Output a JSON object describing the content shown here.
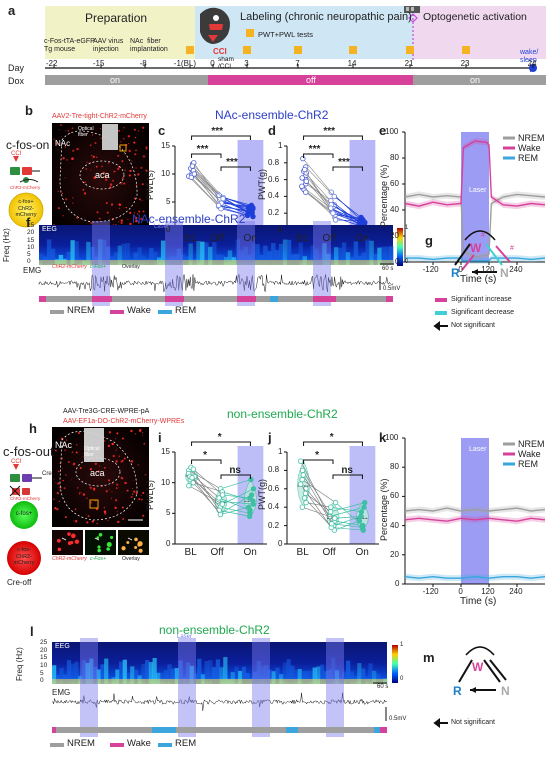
{
  "panels": {
    "a": {
      "label": "a",
      "phases": [
        "Preparation",
        "Labeling  (chronic neuropathic pain)",
        "Optogenetic activation"
      ],
      "prep_events": [
        "c-Fos-tTA-eGFP\nTg mouse",
        "AAV virus\ninjection",
        "NAc  fiber\nimplantation"
      ],
      "cci": "CCI",
      "sham": "sham\n/CCI",
      "pwt_legend": "PWT+PWL tests",
      "day_label": "Day",
      "days": [
        "-22",
        "-15",
        "-8",
        "-1(BL)",
        "0",
        "3",
        "7",
        "14",
        "21",
        "23",
        "24"
      ],
      "wake_sleep": "wake/\nsleep",
      "dox_label": "Dox",
      "dox": [
        "on",
        "off",
        "on"
      ]
    },
    "b": {
      "label": "b",
      "virus": "AAV2-Tre-tight-ChR2-mCherry",
      "condition": "c-fos-on",
      "cci": "CCI",
      "region1": "NAc",
      "region2": "aca",
      "fiber": "Optical\nfiber",
      "inset_labels": [
        "ChR2-mCherry",
        "c-Fos+",
        "Overlay"
      ],
      "circle_text": "c-fos+\nChR2-\nmCherry",
      "small_text": "ChR2-mCherry"
    },
    "c": {
      "label": "c",
      "ylabel": "PWL(s)",
      "categories": [
        "BL",
        "Off",
        "On"
      ],
      "sig": [
        "***",
        "***",
        "***"
      ],
      "laser": "Laser"
    },
    "d": {
      "label": "d",
      "ylabel": "PWT(g)",
      "categories": [
        "BL",
        "Off",
        "On"
      ],
      "sig": [
        "***",
        "***",
        "***"
      ]
    },
    "e": {
      "label": "e",
      "ylabel": "Percentage (%)",
      "xlabel": "Time (s)",
      "ticks_x": [
        "-120",
        "0",
        "120",
        "240"
      ],
      "ticks_y": [
        "0",
        "20",
        "40",
        "60",
        "80",
        "100"
      ],
      "legend": [
        "NREM",
        "Wake",
        "REM"
      ],
      "laser": "Laser"
    },
    "f": {
      "label": "f",
      "title": "NAc-ensemble-ChR2",
      "laser": "Laser",
      "eeg": "EEG",
      "emg": "EMG",
      "freq": "Freq (Hz)",
      "ticks_y": [
        "25",
        "20",
        "15",
        "10",
        "5",
        "0"
      ],
      "cbar": [
        "1",
        "0"
      ],
      "scale_t": "60 s",
      "scale_v": "0.5mV",
      "legend": [
        "NREM",
        "Wake",
        "REM"
      ]
    },
    "g": {
      "label": "g",
      "nodes": [
        "W",
        "R",
        "N"
      ],
      "legend": [
        "Significant increase",
        "Significant decrease",
        "Not significant"
      ],
      "marks": [
        "#",
        "#"
      ]
    },
    "h": {
      "label": "h",
      "virus1": "AAV-Tre3G-CRE-WPRE-pA",
      "virus2": "AAV-EF1a-DO-ChR2-mCherry-WPREs",
      "condition": "c-fos-out",
      "cci": "CCI",
      "cre": "Cre",
      "region1": "NAc",
      "region2": "aca",
      "fiber": "Optical\nfiber",
      "inset_labels": [
        "ChR2-mCherry",
        "c-Fos+",
        "Overlay"
      ],
      "circle1": "c-fos+",
      "circle2": "c-fos-\nChR2-\nmCherry",
      "creoff": "Cre-off",
      "small_text": "ChR2-mCherry"
    },
    "i": {
      "label": "i",
      "ylabel": "PWL(s)",
      "categories": [
        "BL",
        "Off",
        "On"
      ],
      "sig": [
        "*",
        "*",
        "ns"
      ]
    },
    "j": {
      "label": "j",
      "ylabel": "PWT(g)",
      "categories": [
        "BL",
        "Off",
        "On"
      ],
      "sig": [
        "*",
        "*",
        "ns"
      ]
    },
    "k": {
      "label": "k",
      "ylabel": "Percentage (%)",
      "xlabel": "Time (s)",
      "ticks_x": [
        "-120",
        "0",
        "120",
        "240"
      ],
      "ticks_y": [
        "0",
        "20",
        "40",
        "60",
        "80",
        "100"
      ],
      "legend": [
        "NREM",
        "Wake",
        "REM"
      ],
      "laser": "Laser"
    },
    "l": {
      "label": "l",
      "title": "non-ensemble-ChR2",
      "laser": "Laser",
      "eeg": "EEG",
      "emg": "EMG",
      "freq": "Freq (Hz)",
      "ticks_y": [
        "25",
        "20",
        "15",
        "10",
        "5",
        "0"
      ],
      "cbar": [
        "1",
        "0"
      ],
      "scale_t": "60 s",
      "scale_v": "0.5mV",
      "legend": [
        "NREM",
        "Wake",
        "REM"
      ]
    },
    "m": {
      "label": "m",
      "nodes": [
        "W",
        "R",
        "N"
      ],
      "legend": [
        "Not significant"
      ]
    }
  },
  "titles": {
    "top": "NAc-ensemble-ChR2",
    "bottom": "non-ensemble-ChR2"
  },
  "colors": {
    "nrem": "#9e9e9e",
    "wake": "#d6419a",
    "rem": "#3aa6dd",
    "laser": "#7b7bf0",
    "on": "#1e3fd9",
    "teal": "#3fbfa4",
    "green": "#1fa84e",
    "blue_title": "#2c3fc7"
  },
  "chart_data": [
    {
      "panel": "c",
      "type": "scatter",
      "categories": [
        "BL",
        "Off",
        "On"
      ],
      "ylim": [
        0,
        15
      ],
      "ticks": [
        0,
        5,
        10,
        15
      ],
      "pairs": [
        [
          11.2,
          6.0,
          4.0
        ],
        [
          10.4,
          5.2,
          3.2
        ],
        [
          10.0,
          4.6,
          2.8
        ],
        [
          11.8,
          5.8,
          4.4
        ],
        [
          9.6,
          4.2,
          3.4
        ],
        [
          10.8,
          6.4,
          3.0
        ],
        [
          12.0,
          5.0,
          4.0
        ],
        [
          10.2,
          4.0,
          2.6
        ],
        [
          9.8,
          5.4,
          3.6
        ],
        [
          11.0,
          4.8,
          4.2
        ],
        [
          10.6,
          6.2,
          3.8
        ],
        [
          9.4,
          3.8,
          2.4
        ],
        [
          11.4,
          5.6,
          3.3
        ],
        [
          10.0,
          4.4,
          3.1
        ]
      ]
    },
    {
      "panel": "d",
      "type": "scatter",
      "categories": [
        "BL",
        "Off",
        "On"
      ],
      "ylim": [
        0,
        1.0
      ],
      "ticks": [
        0,
        0.2,
        0.4,
        0.6,
        0.8,
        1.0
      ],
      "pairs": [
        [
          0.85,
          0.45,
          0.1
        ],
        [
          0.7,
          0.3,
          0.05
        ],
        [
          0.65,
          0.25,
          0.08
        ],
        [
          0.6,
          0.2,
          0.12
        ],
        [
          0.55,
          0.35,
          0.06
        ],
        [
          0.75,
          0.4,
          0.15
        ],
        [
          0.5,
          0.15,
          0.04
        ],
        [
          0.62,
          0.28,
          0.1
        ],
        [
          0.48,
          0.22,
          0.09
        ],
        [
          0.58,
          0.3,
          0.07
        ],
        [
          0.68,
          0.18,
          0.14
        ],
        [
          0.52,
          0.26,
          0.05
        ],
        [
          0.72,
          0.12,
          0.11
        ],
        [
          0.45,
          0.2,
          0.08
        ]
      ]
    },
    {
      "panel": "e",
      "type": "line",
      "xlim": [
        -240,
        360
      ],
      "ylim": [
        0,
        100
      ],
      "laser": [
        0,
        120
      ],
      "x": [
        -240,
        -180,
        -120,
        -60,
        0,
        10,
        60,
        110,
        120,
        130,
        180,
        240,
        300,
        360
      ],
      "series": [
        {
          "name": "NREM",
          "values": [
            50,
            52,
            50,
            51,
            50,
            8,
            4,
            5,
            6,
            45,
            50,
            52,
            51,
            50
          ]
        },
        {
          "name": "Wake",
          "values": [
            45,
            43,
            46,
            44,
            45,
            88,
            93,
            92,
            90,
            50,
            44,
            43,
            45,
            44
          ]
        },
        {
          "name": "REM",
          "values": [
            3,
            3,
            2,
            3,
            3,
            1,
            1,
            1,
            1,
            3,
            3,
            3,
            2,
            3
          ]
        }
      ]
    },
    {
      "panel": "i",
      "type": "scatter",
      "categories": [
        "BL",
        "Off",
        "On"
      ],
      "ylim": [
        0,
        15
      ],
      "ticks": [
        0,
        5,
        10,
        15
      ],
      "pairs": [
        [
          12.0,
          9.0,
          10.5
        ],
        [
          11.5,
          6.0,
          5.0
        ],
        [
          10.5,
          5.0,
          8.0
        ],
        [
          11.0,
          7.0,
          6.5
        ],
        [
          10.0,
          8.5,
          7.0
        ],
        [
          12.5,
          5.5,
          4.5
        ],
        [
          9.5,
          6.5,
          9.0
        ],
        [
          11.0,
          7.5,
          5.5
        ],
        [
          10.8,
          4.8,
          6.0
        ],
        [
          12.2,
          8.0,
          7.5
        ]
      ]
    },
    {
      "panel": "j",
      "type": "scatter",
      "categories": [
        "BL",
        "Off",
        "On"
      ],
      "ylim": [
        0,
        1.0
      ],
      "ticks": [
        0,
        0.2,
        0.4,
        0.6,
        0.8,
        1.0
      ],
      "pairs": [
        [
          0.9,
          0.2,
          0.3
        ],
        [
          0.7,
          0.45,
          0.2
        ],
        [
          0.6,
          0.3,
          0.4
        ],
        [
          0.5,
          0.15,
          0.25
        ],
        [
          0.8,
          0.25,
          0.2
        ],
        [
          0.45,
          0.4,
          0.35
        ],
        [
          0.65,
          0.18,
          0.15
        ],
        [
          0.55,
          0.35,
          0.45
        ],
        [
          0.75,
          0.22,
          0.18
        ],
        [
          0.4,
          0.28,
          0.3
        ]
      ]
    },
    {
      "panel": "k",
      "type": "line",
      "xlim": [
        -240,
        360
      ],
      "ylim": [
        0,
        100
      ],
      "laser": [
        0,
        120
      ],
      "x": [
        -240,
        -180,
        -120,
        -60,
        0,
        60,
        120,
        180,
        240,
        300,
        360
      ],
      "series": [
        {
          "name": "NREM",
          "values": [
            50,
            51,
            50,
            52,
            50,
            51,
            50,
            51,
            52,
            50,
            51
          ]
        },
        {
          "name": "Wake",
          "values": [
            44,
            45,
            44,
            43,
            45,
            44,
            45,
            44,
            43,
            45,
            44
          ]
        },
        {
          "name": "REM",
          "values": [
            5,
            4,
            5,
            4,
            4,
            5,
            4,
            5,
            5,
            4,
            5
          ]
        }
      ]
    }
  ]
}
